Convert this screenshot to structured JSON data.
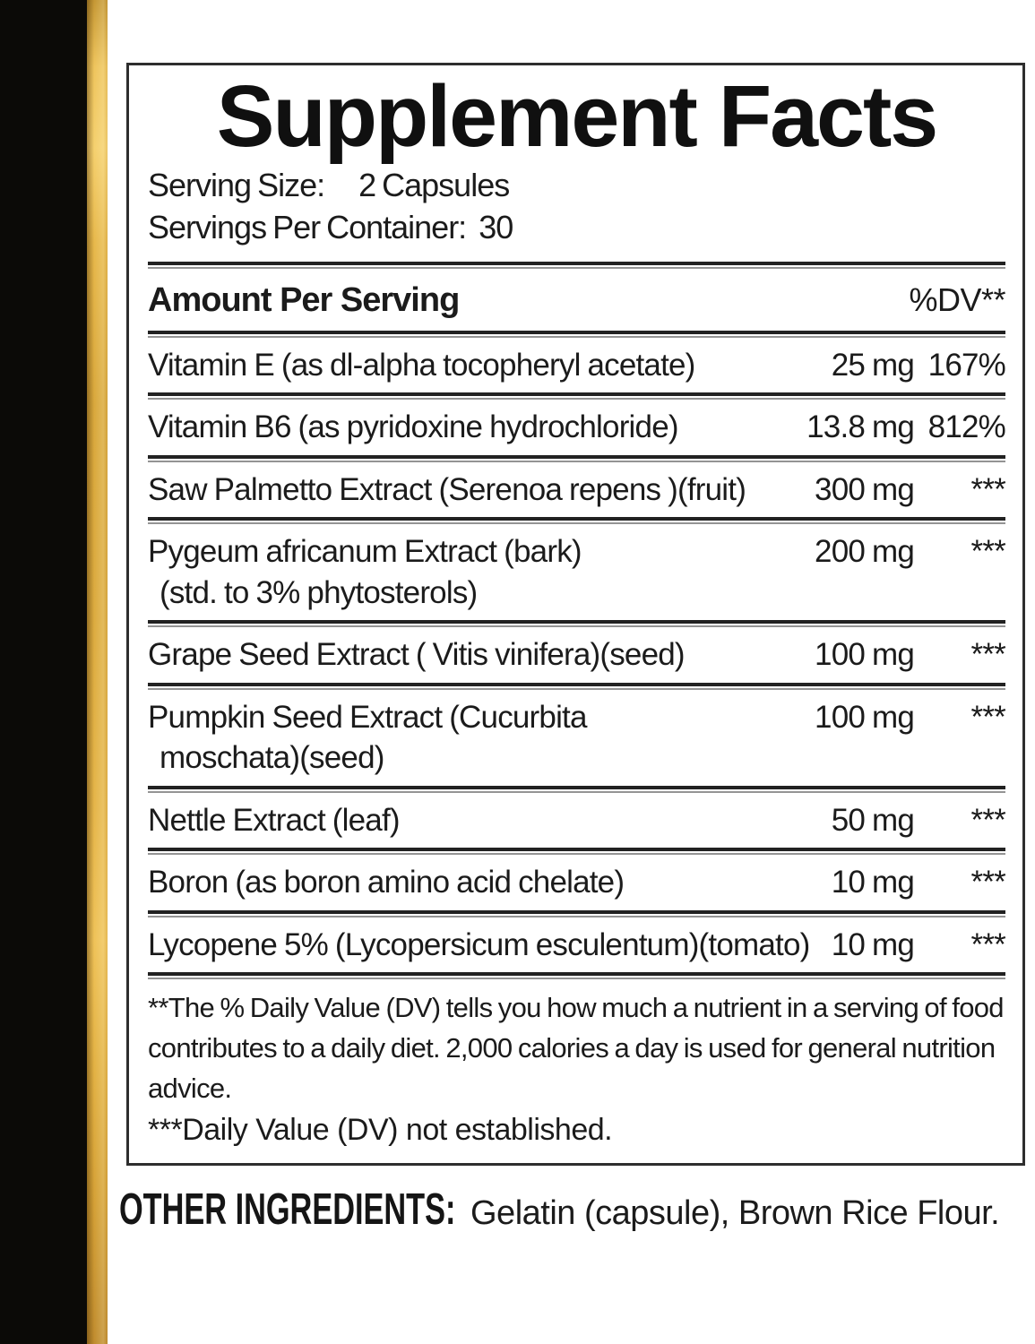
{
  "colors": {
    "side_bar_black": "#0b0a07",
    "gold_accent_bright": "#f5d06e",
    "gold_accent_mid": "#dcab3f",
    "gold_accent_deep": "#c08c2e",
    "panel_border": "#2e2e2e",
    "text": "#1b1b1b"
  },
  "panel": {
    "title": "Supplement Facts",
    "serving_size_label": "Serving Size:",
    "serving_size_value": "2 Capsules",
    "servings_per_container_label": "Servings Per Container:",
    "servings_per_container_value": "30",
    "header": {
      "amount_label": "Amount Per Serving",
      "dv_label": "%DV**"
    },
    "rows": [
      {
        "name": "Vitamin E (as dl-alpha tocopheryl acetate)",
        "amount": "25 mg",
        "dv": "167%"
      },
      {
        "name": "Vitamin B6 (as pyridoxine hydrochloride)",
        "amount": "13.8 mg",
        "dv": "812%"
      },
      {
        "name": "Saw Palmetto Extract (Serenoa repens )(fruit)",
        "amount": "300 mg",
        "dv": "***"
      },
      {
        "name": "Pygeum africanum Extract (bark)",
        "name2": "(std. to 3% phytosterols)",
        "amount": "200 mg",
        "dv": "***"
      },
      {
        "name": "Grape Seed Extract ( Vitis vinifera)(seed)",
        "amount": "100 mg",
        "dv": "***"
      },
      {
        "name": "Pumpkin Seed Extract (Cucurbita",
        "name2": "moschata)(seed)",
        "amount": "100 mg",
        "dv": "***"
      },
      {
        "name": "Nettle Extract (leaf)",
        "amount": "50 mg",
        "dv": "***"
      },
      {
        "name": "Boron (as boron amino acid chelate)",
        "amount": "10 mg",
        "dv": "***"
      },
      {
        "name": "Lycopene 5% (Lycopersicum esculentum)(tomato)",
        "amount": "10 mg",
        "dv": "***"
      }
    ],
    "footnote_dv_definition": "**The % Daily Value (DV) tells you how much a nutrient in a serving of food contributes to a daily diet. 2,000 calories a day is used for general nutrition advice.",
    "footnote_dv_not_established": "***Daily Value (DV) not established."
  },
  "other_ingredients": {
    "label": "OTHER INGREDIENTS:",
    "value": "Gelatin (capsule), Brown Rice Flour."
  }
}
